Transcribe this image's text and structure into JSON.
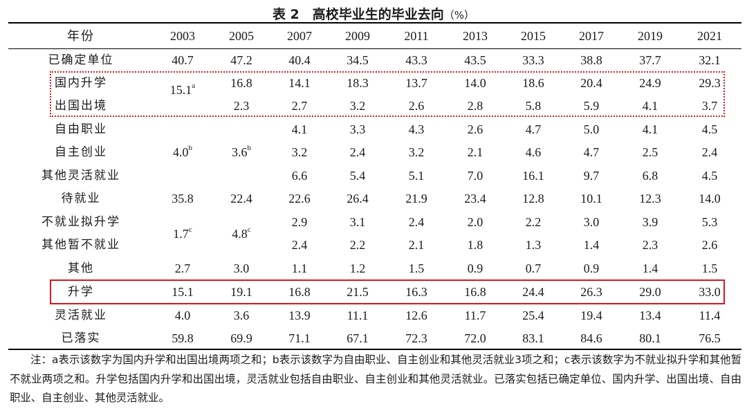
{
  "title": {
    "text": "表 2　高校毕业生的毕业去向",
    "unit": "（%）"
  },
  "header": {
    "label": "年份",
    "years": [
      "2003",
      "2005",
      "2007",
      "2009",
      "2011",
      "2013",
      "2015",
      "2017",
      "2019",
      "2021"
    ]
  },
  "rows": {
    "r0": {
      "label": "已确定单位",
      "values": [
        "40.7",
        "47.2",
        "40.4",
        "34.5",
        "43.3",
        "43.5",
        "33.3",
        "38.8",
        "37.7",
        "32.1"
      ]
    },
    "r1": {
      "label": "国内升学",
      "values": [
        "16.8",
        "14.1",
        "18.3",
        "13.7",
        "14.0",
        "18.6",
        "20.4",
        "24.9",
        "29.3"
      ]
    },
    "r2": {
      "label": "出国出境",
      "values": [
        "2.3",
        "2.7",
        "3.2",
        "2.6",
        "2.8",
        "5.8",
        "5.9",
        "4.1",
        "3.7"
      ]
    },
    "r3": {
      "label": "自由职业",
      "values": [
        "4.1",
        "3.3",
        "4.3",
        "2.6",
        "4.7",
        "5.0",
        "4.1",
        "4.5"
      ]
    },
    "r4": {
      "label": "自主创业",
      "values": [
        "3.2",
        "2.4",
        "3.2",
        "2.1",
        "4.6",
        "4.7",
        "2.5",
        "2.4"
      ]
    },
    "r5": {
      "label": "其他灵活就业",
      "values": [
        "6.6",
        "5.4",
        "5.1",
        "7.0",
        "16.1",
        "9.7",
        "6.8",
        "4.5"
      ]
    },
    "r6": {
      "label": "待就业",
      "values": [
        "35.8",
        "22.4",
        "22.6",
        "26.4",
        "21.9",
        "23.4",
        "12.8",
        "10.1",
        "12.3",
        "14.0"
      ]
    },
    "r7": {
      "label": "不就业拟升学",
      "values": [
        "2.9",
        "3.1",
        "2.4",
        "2.0",
        "2.2",
        "3.0",
        "3.9",
        "5.3"
      ]
    },
    "r8": {
      "label": "其他暂不就业",
      "values": [
        "2.4",
        "2.2",
        "2.1",
        "1.8",
        "1.3",
        "1.4",
        "2.3",
        "2.6"
      ]
    },
    "r9": {
      "label": "其他",
      "values": [
        "2.7",
        "3.0",
        "1.1",
        "1.2",
        "1.5",
        "0.9",
        "0.7",
        "0.9",
        "1.4",
        "1.5"
      ]
    },
    "r10": {
      "label": "升学",
      "values": [
        "15.1",
        "19.1",
        "16.8",
        "21.5",
        "16.3",
        "16.8",
        "24.4",
        "26.3",
        "29.0",
        "33.0"
      ]
    },
    "r11": {
      "label": "灵活就业",
      "values": [
        "4.0",
        "3.6",
        "13.9",
        "11.1",
        "12.6",
        "11.7",
        "25.4",
        "19.4",
        "13.4",
        "11.4"
      ]
    },
    "r12": {
      "label": "已落实",
      "values": [
        "59.8",
        "69.9",
        "71.1",
        "67.1",
        "72.3",
        "72.0",
        "83.1",
        "84.6",
        "80.1",
        "76.5"
      ]
    }
  },
  "merged": {
    "m1": {
      "value": "15.1",
      "sup": "a"
    },
    "m2": {
      "value": "4.0",
      "sup": "b"
    },
    "m3": {
      "value": "3.6",
      "sup": "b"
    },
    "m4": {
      "value": "1.7",
      "sup": "c"
    },
    "m5": {
      "value": "4.8",
      "sup": "c"
    }
  },
  "note": "注：a表示该数字为国内升学和出国出境两项之和；b表示该数字为自由职业、自主创业和其他灵活就业3项之和；c表示该数字为不就业拟升学和其他暂不就业两项之和。升学包括国内升学和出国出境，灵活就业包括自由职业、自主创业和其他灵活就业。已落实包括已确定单位、国内升学、出国出境、自由职业、自主创业、其他灵活就业。",
  "colors": {
    "highlight": "#d9161c"
  }
}
